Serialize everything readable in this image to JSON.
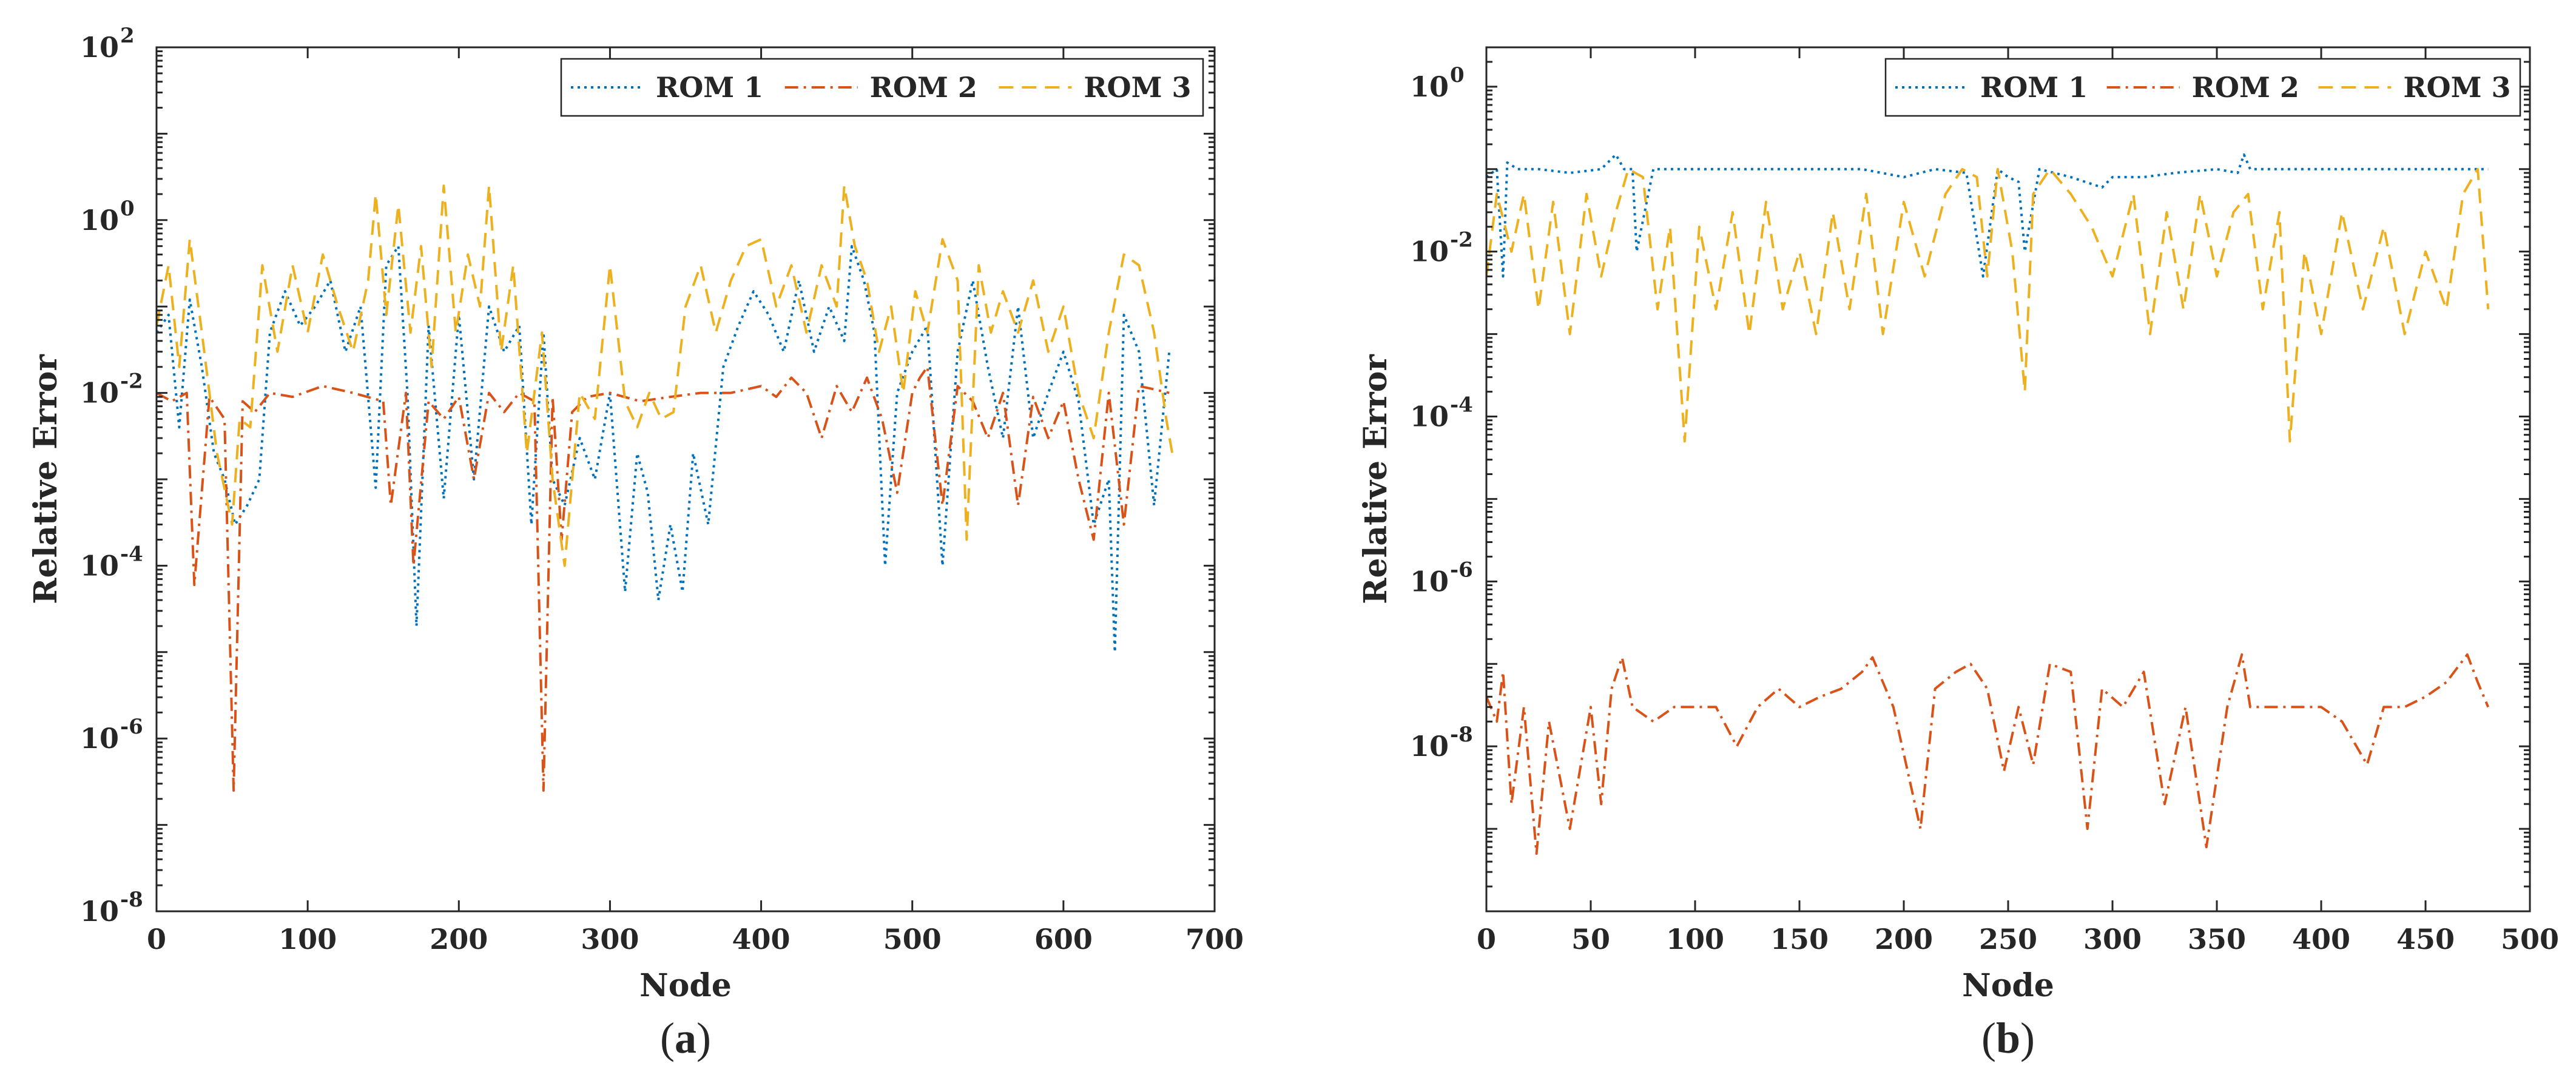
{
  "colors": {
    "rom1": "#0072BD",
    "rom2": "#D95319",
    "rom3": "#EDB120",
    "axis": "#262626"
  },
  "chart_data": [
    {
      "type": "line",
      "panel_label": "(a)",
      "xlabel": "Node",
      "ylabel": "Relative Error",
      "yscale": "log",
      "xlim": [
        0,
        700
      ],
      "ylim": [
        1e-08,
        100
      ],
      "xticks": [
        0,
        100,
        200,
        300,
        400,
        500,
        600,
        700
      ],
      "xtick_labels": [
        "0",
        "100",
        "200",
        "300",
        "400",
        "500",
        "600",
        "700"
      ],
      "ytick_exponents": [
        -8,
        -6,
        -4,
        -2,
        0,
        2
      ],
      "ytick_base": "10",
      "grid": false,
      "legend_position": "top-right",
      "legend_layout": "horizontal",
      "series": [
        {
          "name": "ROM 1",
          "style": "dotted",
          "color": "#0072BD",
          "x": [
            0,
            8,
            15,
            22,
            30,
            38,
            45,
            52,
            60,
            68,
            75,
            85,
            95,
            105,
            115,
            125,
            135,
            145,
            152,
            160,
            166,
            172,
            180,
            190,
            200,
            210,
            220,
            230,
            240,
            248,
            256,
            262,
            270,
            280,
            290,
            300,
            310,
            318,
            325,
            332,
            340,
            348,
            355,
            365,
            375,
            385,
            395,
            405,
            415,
            425,
            435,
            445,
            455,
            460,
            468,
            475,
            482,
            490,
            500,
            510,
            520,
            530,
            540,
            550,
            560,
            570,
            580,
            590,
            600,
            610,
            620,
            630,
            634,
            640,
            650,
            660,
            670
          ],
          "y": [
            0.05,
            0.08,
            0.004,
            0.12,
            0.02,
            0.002,
            0.001,
            0.0003,
            0.0005,
            0.001,
            0.05,
            0.15,
            0.06,
            0.1,
            0.2,
            0.03,
            0.1,
            0.0008,
            0.3,
            0.5,
            0.01,
            2e-05,
            0.06,
            0.0006,
            0.08,
            0.001,
            0.1,
            0.03,
            0.06,
            0.0003,
            0.05,
            0.001,
            0.0005,
            0.003,
            0.001,
            0.01,
            5e-05,
            0.002,
            0.0007,
            4e-05,
            0.0003,
            5e-05,
            0.002,
            0.0003,
            0.02,
            0.06,
            0.15,
            0.08,
            0.03,
            0.2,
            0.03,
            0.1,
            0.04,
            0.5,
            0.2,
            0.05,
            0.0001,
            0.01,
            0.03,
            0.06,
            0.0001,
            0.03,
            0.2,
            0.02,
            0.003,
            0.1,
            0.003,
            0.01,
            0.03,
            0.008,
            0.0003,
            0.001,
            1e-05,
            0.08,
            0.03,
            0.0005,
            0.03
          ]
        },
        {
          "name": "ROM 2",
          "style": "dashdot",
          "color": "#D95319",
          "x": [
            0,
            10,
            20,
            25,
            35,
            45,
            51,
            57,
            65,
            75,
            90,
            110,
            130,
            150,
            155,
            165,
            170,
            180,
            190,
            200,
            210,
            220,
            230,
            240,
            250,
            256,
            262,
            268,
            275,
            285,
            300,
            320,
            340,
            360,
            380,
            400,
            410,
            420,
            430,
            440,
            450,
            460,
            470,
            480,
            490,
            500,
            505,
            510,
            520,
            530,
            540,
            550,
            560,
            570,
            580,
            590,
            600,
            610,
            620,
            630,
            640,
            650,
            660,
            670
          ],
          "y": [
            0.01,
            0.008,
            0.01,
            6e-05,
            0.009,
            0.005,
            2.5e-07,
            0.008,
            0.006,
            0.01,
            0.009,
            0.012,
            0.01,
            0.008,
            0.0005,
            0.01,
            0.0001,
            0.008,
            0.005,
            0.009,
            0.001,
            0.01,
            0.006,
            0.01,
            0.008,
            2.5e-07,
            0.009,
            0.0002,
            0.006,
            0.009,
            0.01,
            0.008,
            0.009,
            0.01,
            0.01,
            0.012,
            0.009,
            0.015,
            0.01,
            0.003,
            0.012,
            0.006,
            0.015,
            0.005,
            0.0007,
            0.01,
            0.015,
            0.02,
            0.0005,
            0.012,
            0.008,
            0.003,
            0.01,
            0.0005,
            0.009,
            0.003,
            0.008,
            0.001,
            0.0002,
            0.01,
            0.0003,
            0.012,
            0.011,
            0.01
          ]
        },
        {
          "name": "ROM 3",
          "style": "dashed",
          "color": "#EDB120",
          "x": [
            0,
            8,
            15,
            22,
            30,
            40,
            50,
            55,
            62,
            70,
            80,
            90,
            100,
            110,
            120,
            130,
            140,
            145,
            152,
            160,
            168,
            175,
            182,
            190,
            198,
            206,
            214,
            220,
            228,
            236,
            245,
            255,
            262,
            270,
            280,
            290,
            300,
            310,
            318,
            326,
            334,
            342,
            350,
            360,
            370,
            380,
            390,
            400,
            410,
            420,
            430,
            440,
            450,
            455,
            462,
            470,
            478,
            486,
            494,
            502,
            510,
            520,
            530,
            536,
            544,
            552,
            560,
            570,
            580,
            590,
            600,
            610,
            620,
            630,
            640,
            650,
            660,
            668,
            672
          ],
          "y": [
            0.06,
            0.3,
            0.02,
            0.6,
            0.05,
            0.002,
            0.0003,
            0.005,
            0.004,
            0.3,
            0.03,
            0.3,
            0.05,
            0.4,
            0.1,
            0.03,
            0.2,
            2.0,
            0.08,
            1.5,
            0.05,
            0.5,
            0.02,
            2.5,
            0.05,
            0.4,
            0.1,
            2.5,
            0.03,
            0.3,
            0.002,
            0.05,
            0.001,
            0.0001,
            0.01,
            0.005,
            0.3,
            0.008,
            0.004,
            0.01,
            0.005,
            0.006,
            0.1,
            0.3,
            0.05,
            0.2,
            0.5,
            0.6,
            0.1,
            0.3,
            0.05,
            0.3,
            0.1,
            2.5,
            0.5,
            0.2,
            0.03,
            0.1,
            0.01,
            0.15,
            0.05,
            0.6,
            0.2,
            0.0002,
            0.3,
            0.05,
            0.15,
            0.05,
            0.2,
            0.03,
            0.1,
            0.01,
            0.003,
            0.05,
            0.4,
            0.3,
            0.05,
            0.005,
            0.002
          ]
        }
      ]
    },
    {
      "type": "line",
      "panel_label": "(b)",
      "xlabel": "Node",
      "ylabel": "Relative Error",
      "yscale": "log",
      "xlim": [
        0,
        500
      ],
      "ylim": [
        1e-10,
        3
      ],
      "xticks": [
        0,
        50,
        100,
        150,
        200,
        250,
        300,
        350,
        400,
        450,
        500
      ],
      "xtick_labels": [
        "0",
        "50",
        "100",
        "150",
        "200",
        "250",
        "300",
        "350",
        "400",
        "450",
        "500"
      ],
      "ytick_exponents": [
        -8,
        -6,
        -4,
        -2,
        0
      ],
      "ytick_base": "10",
      "grid": false,
      "legend_position": "top-right",
      "legend_layout": "horizontal",
      "series": [
        {
          "name": "ROM 1",
          "style": "dotted",
          "color": "#0072BD",
          "x": [
            0,
            5,
            8,
            10,
            15,
            25,
            40,
            55,
            62,
            66,
            70,
            72,
            80,
            100,
            120,
            140,
            160,
            180,
            200,
            215,
            230,
            238,
            245,
            250,
            255,
            258,
            265,
            280,
            295,
            300,
            315,
            330,
            350,
            360,
            363,
            366,
            380,
            400,
            420,
            440,
            460,
            470,
            480
          ],
          "y": [
            0.08,
            0.1,
            0.005,
            0.12,
            0.1,
            0.1,
            0.09,
            0.1,
            0.15,
            0.1,
            0.1,
            0.01,
            0.1,
            0.1,
            0.1,
            0.1,
            0.1,
            0.1,
            0.08,
            0.1,
            0.09,
            0.005,
            0.1,
            0.08,
            0.07,
            0.01,
            0.1,
            0.08,
            0.06,
            0.08,
            0.08,
            0.09,
            0.1,
            0.09,
            0.15,
            0.1,
            0.1,
            0.1,
            0.1,
            0.1,
            0.1,
            0.1,
            0.1
          ]
        },
        {
          "name": "ROM 2",
          "style": "dashdot",
          "color": "#D95319",
          "x": [
            0,
            5,
            8,
            12,
            18,
            24,
            30,
            40,
            50,
            55,
            60,
            65,
            70,
            80,
            90,
            100,
            110,
            120,
            130,
            140,
            150,
            160,
            170,
            180,
            185,
            195,
            208,
            215,
            225,
            232,
            240,
            248,
            255,
            262,
            270,
            280,
            288,
            295,
            305,
            315,
            325,
            335,
            345,
            355,
            362,
            366,
            372,
            380,
            390,
            400,
            410,
            422,
            430,
            440,
            450,
            460,
            470,
            475,
            480
          ],
          "y": [
            4e-08,
            2e-08,
            8e-08,
            2e-09,
            3e-08,
            5e-10,
            2e-08,
            1e-09,
            3e-08,
            2e-09,
            5e-08,
            1.2e-07,
            3e-08,
            2e-08,
            3e-08,
            3e-08,
            3e-08,
            1e-08,
            3e-08,
            5e-08,
            3e-08,
            4e-08,
            5e-08,
            8e-08,
            1.2e-07,
            3e-08,
            1e-09,
            5e-08,
            8e-08,
            1e-07,
            5e-08,
            5e-09,
            3e-08,
            6e-09,
            1e-07,
            8e-08,
            1e-09,
            5e-08,
            3e-08,
            8e-08,
            2e-09,
            3e-08,
            6e-10,
            3e-08,
            1.3e-07,
            3e-08,
            3e-08,
            3e-08,
            3e-08,
            3e-08,
            2e-08,
            6e-09,
            3e-08,
            3e-08,
            4e-08,
            6e-08,
            1.3e-07,
            6e-08,
            3e-08
          ]
        },
        {
          "name": "ROM 3",
          "style": "dashed",
          "color": "#EDB120",
          "x": [
            0,
            5,
            12,
            18,
            25,
            32,
            40,
            48,
            55,
            62,
            68,
            75,
            82,
            88,
            95,
            102,
            110,
            118,
            126,
            134,
            142,
            150,
            158,
            166,
            174,
            182,
            190,
            200,
            210,
            220,
            228,
            235,
            240,
            245,
            252,
            258,
            262,
            270,
            280,
            290,
            300,
            310,
            318,
            326,
            334,
            342,
            350,
            358,
            365,
            372,
            380,
            385,
            392,
            400,
            410,
            420,
            430,
            440,
            450,
            460,
            468,
            475,
            480
          ],
          "y": [
            0.005,
            0.05,
            0.01,
            0.05,
            0.002,
            0.04,
            0.001,
            0.05,
            0.005,
            0.03,
            0.1,
            0.08,
            0.002,
            0.02,
            5e-05,
            0.02,
            0.002,
            0.03,
            0.001,
            0.04,
            0.002,
            0.01,
            0.001,
            0.03,
            0.002,
            0.05,
            0.001,
            0.04,
            0.005,
            0.05,
            0.1,
            0.08,
            0.005,
            0.1,
            0.01,
            0.0002,
            0.05,
            0.1,
            0.05,
            0.02,
            0.005,
            0.05,
            0.001,
            0.03,
            0.002,
            0.05,
            0.005,
            0.03,
            0.05,
            0.002,
            0.03,
            5e-05,
            0.01,
            0.001,
            0.03,
            0.002,
            0.02,
            0.001,
            0.01,
            0.002,
            0.05,
            0.1,
            0.002
          ]
        }
      ]
    }
  ]
}
